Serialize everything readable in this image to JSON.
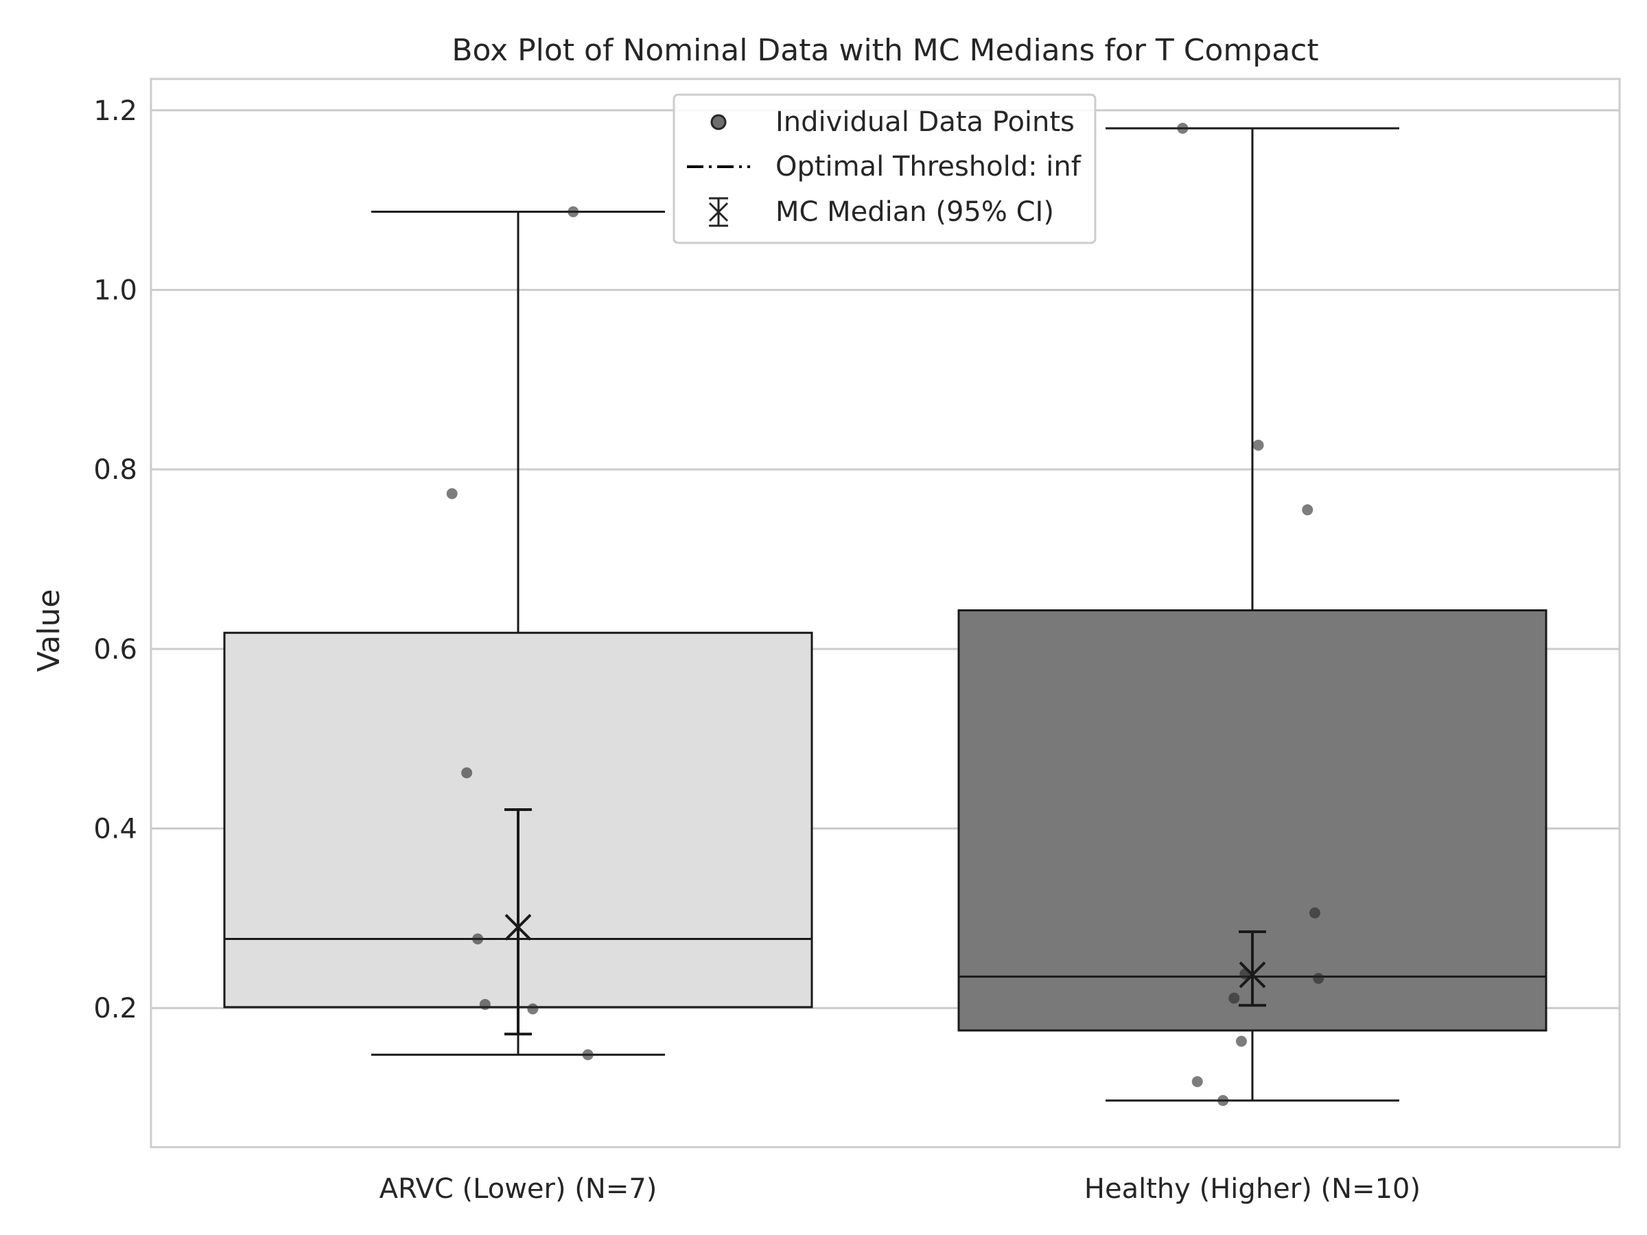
{
  "chart_data": {
    "type": "box",
    "title": "Box Plot of Nominal Data with MC Medians for T Compact",
    "xlabel": "",
    "ylabel": "Value",
    "ylim": [
      0.045,
      1.235
    ],
    "yticks": [
      0.2,
      0.4,
      0.6,
      0.8,
      1.0,
      1.2
    ],
    "ytick_labels": [
      "0.2",
      "0.4",
      "0.6",
      "0.8",
      "1.0",
      "1.2"
    ],
    "grid": "horizontal",
    "legend_position": "top-center",
    "legend": [
      {
        "label": "Individual Data Points",
        "marker": "circle"
      },
      {
        "label": "Optimal Threshold: inf",
        "marker": "dash-dot-line"
      },
      {
        "label": "MC Median (95% CI)",
        "marker": "x-errorbar"
      }
    ],
    "groups": [
      {
        "category": "ARVC (Lower) (N=7)",
        "fill_color": "#dedede",
        "whisker_low": 0.148,
        "q1": 0.201,
        "median": 0.277,
        "q3": 0.618,
        "whisker_high": 1.087,
        "points": [
          {
            "x_jitter": -0.09,
            "y": 0.773
          },
          {
            "x_jitter": -0.07,
            "y": 0.462
          },
          {
            "x_jitter": -0.055,
            "y": 0.277
          },
          {
            "x_jitter": -0.045,
            "y": 0.204
          },
          {
            "x_jitter": 0.02,
            "y": 0.199
          },
          {
            "x_jitter": 0.075,
            "y": 1.087
          },
          {
            "x_jitter": 0.095,
            "y": 0.148
          }
        ],
        "mc_median": 0.29,
        "mc_ci": [
          0.171,
          0.421
        ]
      },
      {
        "category": "Healthy (Higher) (N=10)",
        "fill_color": "#797979",
        "whisker_low": 0.097,
        "q1": 0.175,
        "median": 0.235,
        "q3": 0.643,
        "whisker_high": 1.18,
        "points": [
          {
            "x_jitter": -0.095,
            "y": 1.18
          },
          {
            "x_jitter": -0.075,
            "y": 0.118
          },
          {
            "x_jitter": -0.04,
            "y": 0.097
          },
          {
            "x_jitter": -0.025,
            "y": 0.211
          },
          {
            "x_jitter": -0.015,
            "y": 0.163
          },
          {
            "x_jitter": -0.01,
            "y": 0.238
          },
          {
            "x_jitter": 0.008,
            "y": 0.827
          },
          {
            "x_jitter": 0.075,
            "y": 0.755
          },
          {
            "x_jitter": 0.085,
            "y": 0.306
          },
          {
            "x_jitter": 0.09,
            "y": 0.233
          }
        ],
        "mc_median": 0.237,
        "mc_ci": [
          0.203,
          0.285
        ]
      }
    ]
  }
}
